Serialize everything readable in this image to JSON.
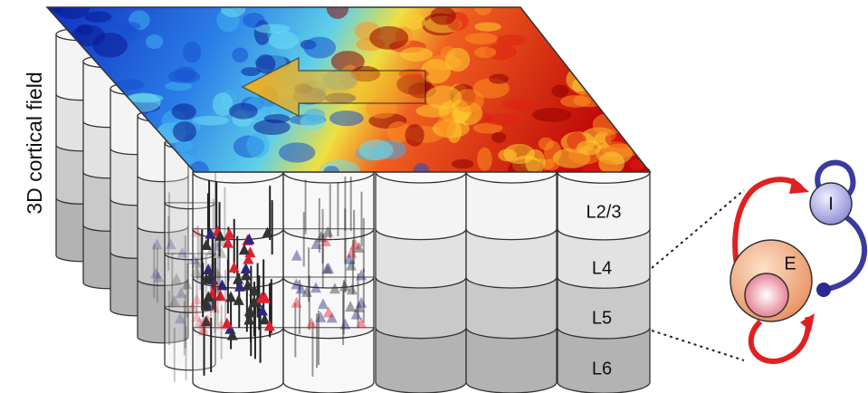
{
  "axis_label": "3D cortical field",
  "layers": [
    "L2/3",
    "L4",
    "L5",
    "L6"
  ],
  "circuit": {
    "inhibitory": "I",
    "excitatory": "E"
  }
}
